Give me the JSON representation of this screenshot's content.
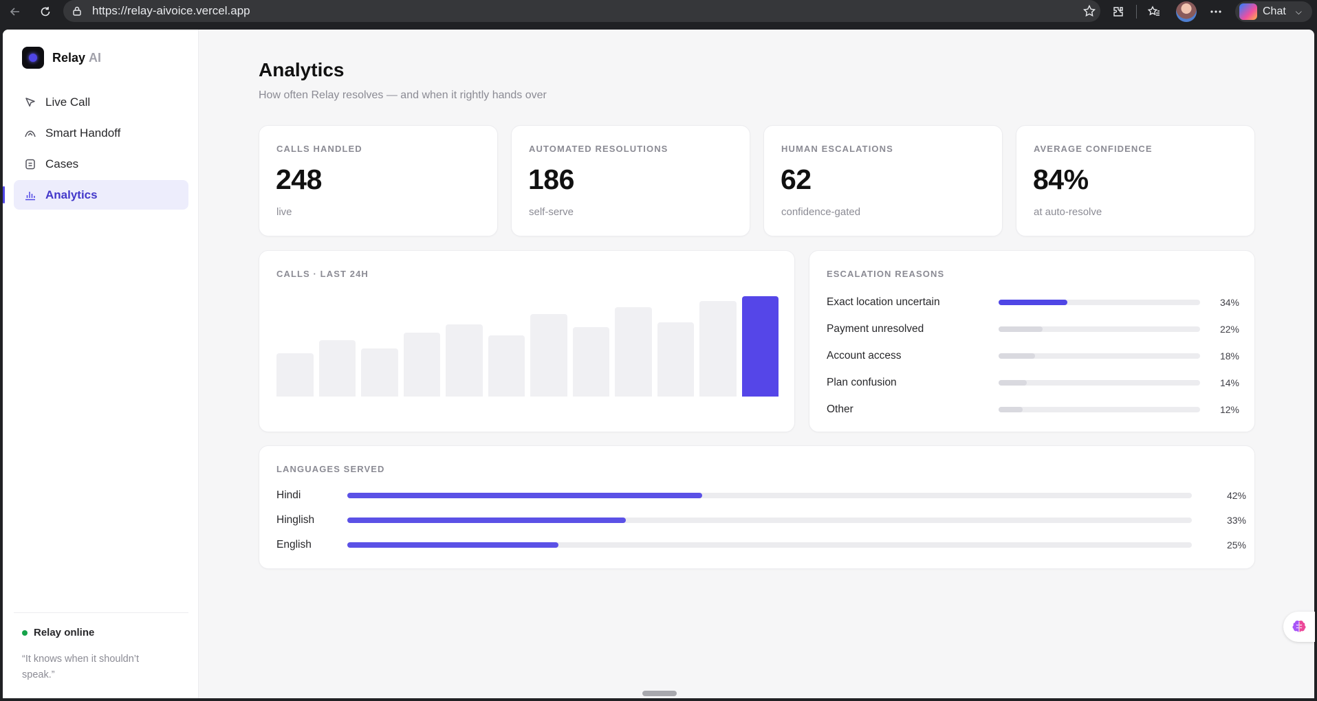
{
  "browser": {
    "url": "https://relay-aivoice.vercel.app",
    "chat_label": "Chat"
  },
  "brand": {
    "name": "Relay",
    "suffix": "AI"
  },
  "sidebar": {
    "items": [
      {
        "label": "Live Call",
        "icon": "cursor-icon"
      },
      {
        "label": "Smart Handoff",
        "icon": "handoff-icon"
      },
      {
        "label": "Cases",
        "icon": "cases-icon"
      },
      {
        "label": "Analytics",
        "icon": "bar-chart-icon",
        "active": true
      }
    ],
    "status": "Relay online",
    "status_color": "#16a34a",
    "quote": "“It knows when it shouldn’t speak.”"
  },
  "page": {
    "title": "Analytics",
    "subtitle": "How often Relay resolves — and when it rightly hands over"
  },
  "stats": [
    {
      "label": "CALLS HANDLED",
      "value": "248",
      "note": "live"
    },
    {
      "label": "AUTOMATED RESOLUTIONS",
      "value": "186",
      "note": "self-serve"
    },
    {
      "label": "HUMAN ESCALATIONS",
      "value": "62",
      "note": "confidence-gated"
    },
    {
      "label": "AVERAGE CONFIDENCE",
      "value": "84%",
      "note": "at auto-resolve"
    }
  ],
  "calls_chart": {
    "title": "CALLS · LAST 24H",
    "accent": "#5546e8",
    "chart_data": {
      "type": "bar",
      "values": [
        43,
        56,
        48,
        64,
        72,
        61,
        82,
        69,
        89,
        74,
        95,
        100
      ],
      "highlight_index": 11
    }
  },
  "escalation": {
    "title": "ESCALATION REASONS",
    "items": [
      {
        "label": "Exact location uncertain",
        "value": 34,
        "pct": "34%",
        "strong": true
      },
      {
        "label": "Payment unresolved",
        "value": 22,
        "pct": "22%"
      },
      {
        "label": "Account access",
        "value": 18,
        "pct": "18%"
      },
      {
        "label": "Plan confusion",
        "value": 14,
        "pct": "14%"
      },
      {
        "label": "Other",
        "value": 12,
        "pct": "12%"
      }
    ]
  },
  "languages": {
    "title": "LANGUAGES SERVED",
    "items": [
      {
        "label": "Hindi",
        "value": 42,
        "pct": "42%"
      },
      {
        "label": "Hinglish",
        "value": 33,
        "pct": "33%"
      },
      {
        "label": "English",
        "value": 25,
        "pct": "25%"
      }
    ]
  }
}
